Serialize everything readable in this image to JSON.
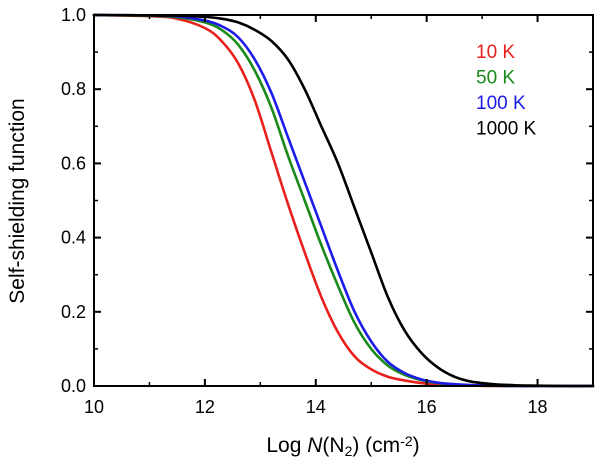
{
  "chart_data": {
    "type": "line",
    "title": "",
    "xlabel": "Log N(N2) (cm-2)",
    "xlabel_parts": {
      "prefix": "Log ",
      "italic": "N",
      "open": "(N",
      "sub": "2",
      "close": ") (cm",
      "sup": "-2",
      "end": ")"
    },
    "ylabel": "Self-shielding function",
    "xlim": [
      10,
      19
    ],
    "ylim": [
      0.0,
      1.0
    ],
    "xticks": [
      "10",
      "12",
      "14",
      "16",
      "18"
    ],
    "xtick_values": [
      10,
      12,
      14,
      16,
      18
    ],
    "yticks": [
      "0.0",
      "0.2",
      "0.4",
      "0.6",
      "0.8",
      "1.0"
    ],
    "ytick_values": [
      0.0,
      0.2,
      0.4,
      0.6,
      0.8,
      1.0
    ],
    "x": [
      10,
      11,
      11.5,
      12,
      12.3,
      12.6,
      12.9,
      13.2,
      13.5,
      13.8,
      14.1,
      14.4,
      14.7,
      15.0,
      15.3,
      15.6,
      15.9,
      16.2,
      16.5,
      16.8,
      17.2,
      17.6,
      18.0,
      18.5,
      19.0
    ],
    "legend_position": "top-right",
    "series": [
      {
        "name": "10 K",
        "color": "#e8201e",
        "values": [
          1.0,
          0.997,
          0.99,
          0.965,
          0.93,
          0.87,
          0.77,
          0.63,
          0.49,
          0.36,
          0.24,
          0.145,
          0.08,
          0.045,
          0.025,
          0.015,
          0.008,
          0.004,
          0.002,
          0.001,
          0.0,
          0.0,
          0.0,
          0.0,
          0.0
        ]
      },
      {
        "name": "50 K",
        "color": "#1a8a1a",
        "values": [
          1.0,
          0.998,
          0.994,
          0.98,
          0.96,
          0.92,
          0.85,
          0.75,
          0.62,
          0.5,
          0.38,
          0.27,
          0.17,
          0.1,
          0.055,
          0.03,
          0.016,
          0.008,
          0.004,
          0.002,
          0.001,
          0.0,
          0.0,
          0.0,
          0.0
        ]
      },
      {
        "name": "100 K",
        "color": "#1c1ce6",
        "values": [
          1.0,
          0.999,
          0.996,
          0.985,
          0.97,
          0.94,
          0.88,
          0.79,
          0.67,
          0.55,
          0.43,
          0.31,
          0.2,
          0.12,
          0.065,
          0.035,
          0.018,
          0.009,
          0.005,
          0.0025,
          0.001,
          0.0,
          0.0,
          0.0,
          0.0
        ]
      },
      {
        "name": "1000 K",
        "color": "#000000",
        "values": [
          1.0,
          0.999,
          0.998,
          0.995,
          0.99,
          0.98,
          0.96,
          0.93,
          0.88,
          0.8,
          0.7,
          0.6,
          0.48,
          0.36,
          0.24,
          0.15,
          0.09,
          0.05,
          0.025,
          0.012,
          0.005,
          0.002,
          0.001,
          0.0,
          0.0
        ]
      }
    ]
  }
}
